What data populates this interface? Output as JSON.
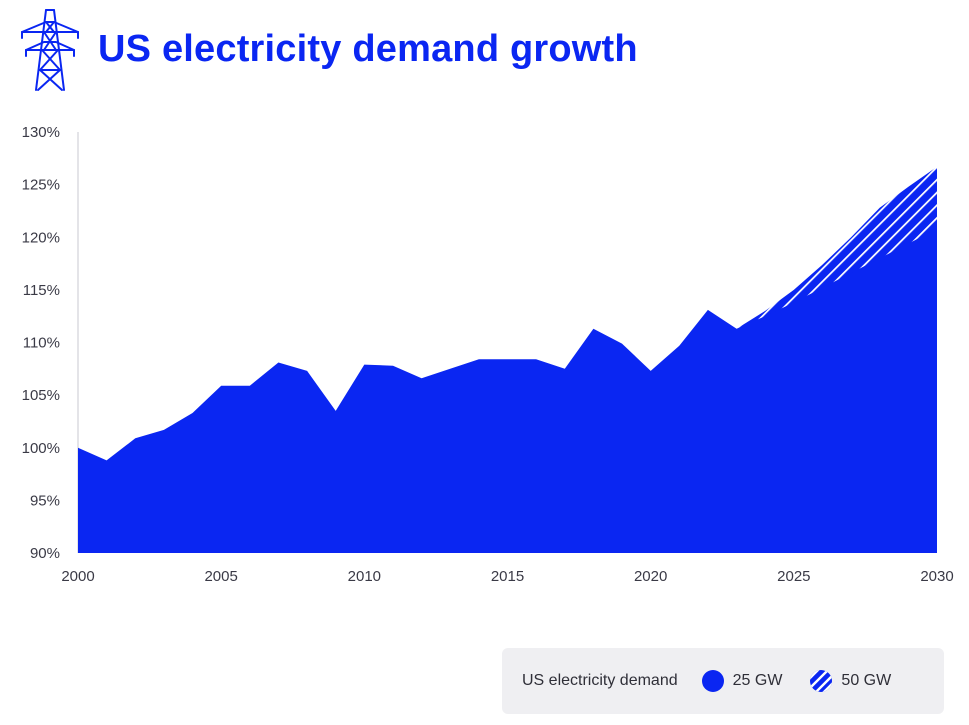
{
  "header": {
    "title": "US electricity demand growth",
    "icon": "power-pylon-icon"
  },
  "colors": {
    "accent": "#0a26f2",
    "text": "#3a3a46",
    "legend_bg": "#efeff2"
  },
  "legend": {
    "label": "US electricity demand",
    "items": [
      {
        "label": "25 GW",
        "style": "solid"
      },
      {
        "label": "50 GW",
        "style": "hatched"
      }
    ]
  },
  "chart_data": {
    "type": "area",
    "title": "US electricity demand growth",
    "xlabel": "",
    "ylabel": "",
    "xlim": [
      2000,
      2030
    ],
    "ylim": [
      90,
      130
    ],
    "x_ticks": [
      "2000",
      "2005",
      "2010",
      "2015",
      "2020",
      "2025",
      "2030"
    ],
    "y_ticks": [
      "90%",
      "95%",
      "100%",
      "105%",
      "110%",
      "115%",
      "120%",
      "125%",
      "130%"
    ],
    "grid": false,
    "legend_position": "bottom-right",
    "series": [
      {
        "name": "25 GW",
        "style": "solid",
        "points": [
          [
            2000,
            100.0
          ],
          [
            2001,
            98.8
          ],
          [
            2002,
            100.9
          ],
          [
            2003,
            101.7
          ],
          [
            2004,
            103.3
          ],
          [
            2005,
            105.9
          ],
          [
            2006,
            105.9
          ],
          [
            2007,
            108.1
          ],
          [
            2008,
            107.3
          ],
          [
            2009,
            103.5
          ],
          [
            2010,
            107.9
          ],
          [
            2011,
            107.8
          ],
          [
            2012,
            106.6
          ],
          [
            2013,
            107.5
          ],
          [
            2014,
            108.4
          ],
          [
            2015,
            108.4
          ],
          [
            2016,
            108.4
          ],
          [
            2017,
            107.5
          ],
          [
            2018,
            111.3
          ],
          [
            2019,
            109.9
          ],
          [
            2020,
            107.3
          ],
          [
            2021,
            109.7
          ],
          [
            2022,
            113.1
          ],
          [
            2023,
            111.3
          ],
          [
            2024,
            112.5
          ],
          [
            2025,
            113.8
          ],
          [
            2026,
            115.2
          ],
          [
            2027,
            116.6
          ],
          [
            2028,
            118.0
          ],
          [
            2029,
            119.4
          ],
          [
            2030,
            120.8
          ]
        ]
      },
      {
        "name": "50 GW",
        "style": "hatched",
        "points": [
          [
            2023,
            111.3
          ],
          [
            2024,
            113.0
          ],
          [
            2025,
            115.0
          ],
          [
            2026,
            117.4
          ],
          [
            2027,
            120.0
          ],
          [
            2028,
            122.8
          ],
          [
            2029,
            124.8
          ],
          [
            2030,
            126.7
          ]
        ]
      }
    ]
  }
}
